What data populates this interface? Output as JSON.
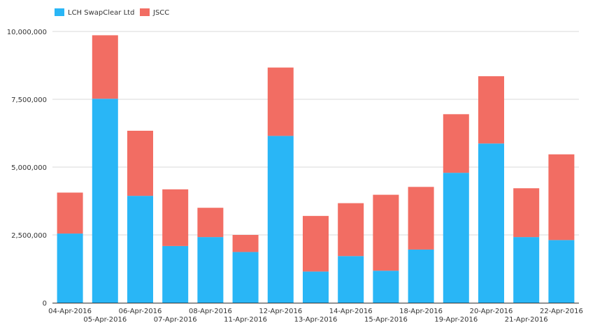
{
  "chart_data": {
    "type": "bar",
    "stacked": true,
    "categories": [
      "04-Apr-2016",
      "05-Apr-2016",
      "06-Apr-2016",
      "07-Apr-2016",
      "08-Apr-2016",
      "11-Apr-2016",
      "12-Apr-2016",
      "13-Apr-2016",
      "14-Apr-2016",
      "15-Apr-2016",
      "18-Apr-2016",
      "19-Apr-2016",
      "20-Apr-2016",
      "21-Apr-2016",
      "22-Apr-2016"
    ],
    "series": [
      {
        "name": "LCH SwapClear Ltd",
        "color": "#29b6f6",
        "values": [
          2550000,
          7520000,
          3940000,
          2090000,
          2420000,
          1870000,
          6150000,
          1150000,
          1720000,
          1180000,
          1960000,
          4790000,
          5870000,
          2420000,
          2310000
        ]
      },
      {
        "name": "JSCC",
        "color": "#f26d63",
        "values": [
          1510000,
          2340000,
          2400000,
          2090000,
          1080000,
          630000,
          2520000,
          2050000,
          1950000,
          2800000,
          2310000,
          2160000,
          2480000,
          1800000,
          3160000
        ]
      }
    ],
    "yticks": [
      "0",
      "2,500,000",
      "5,000,000",
      "7,500,000",
      "10,000,000"
    ],
    "ylim": [
      0,
      10000000
    ],
    "grid": true,
    "legend": "top-left",
    "title": "",
    "xlabel": "",
    "ylabel": ""
  }
}
